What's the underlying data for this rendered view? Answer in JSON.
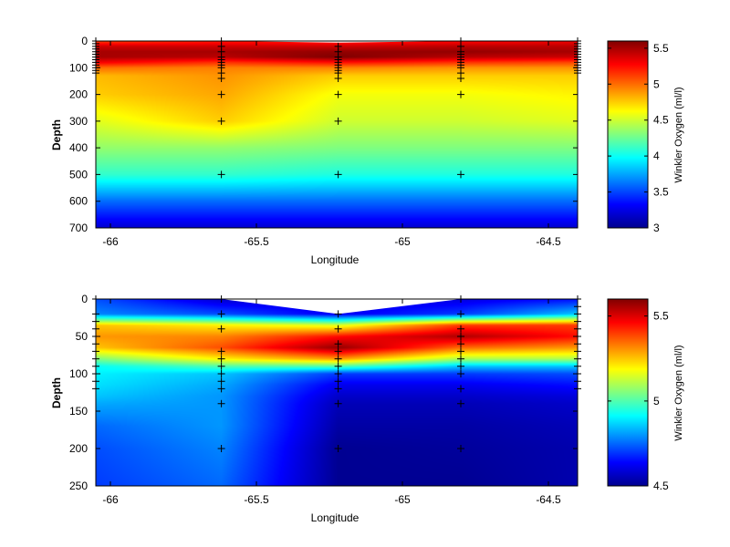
{
  "chart_data": [
    {
      "type": "heatmap",
      "xlabel": "Longitude",
      "ylabel": "Depth",
      "colorbar_label": "Winkler Oxygen (ml/l)",
      "xlim": [
        -66.05,
        -64.4
      ],
      "ylim": [
        0,
        700
      ],
      "y_reversed": true,
      "xticks": [
        "-66",
        "-65.5",
        "-65",
        "-64.5"
      ],
      "yticks": [
        "0",
        "100",
        "200",
        "300",
        "400",
        "500",
        "600",
        "700"
      ],
      "clim": [
        3,
        5.6
      ],
      "cbar_ticks": [
        "3",
        "3.5",
        "4",
        "4.5",
        "5",
        "5.5"
      ],
      "colormap": "jet",
      "surface_depth": [
        {
          "lon": -66.05,
          "depth": 0
        },
        {
          "lon": -65.62,
          "depth": 0
        },
        {
          "lon": -65.22,
          "depth": 6
        },
        {
          "lon": -64.8,
          "depth": 0
        },
        {
          "lon": -64.4,
          "depth": 0
        }
      ],
      "stations": [
        {
          "lon": -66.05,
          "depths": [
            0,
            10,
            20,
            30,
            40,
            50,
            60,
            70,
            80,
            90,
            100,
            110,
            120
          ]
        },
        {
          "lon": -65.62,
          "depths": [
            0,
            20,
            40,
            60,
            70,
            80,
            90,
            100,
            120,
            140,
            200,
            300,
            500
          ]
        },
        {
          "lon": -65.22,
          "depths": [
            20,
            40,
            60,
            70,
            80,
            90,
            100,
            110,
            120,
            140,
            200,
            300,
            500
          ]
        },
        {
          "lon": -64.8,
          "depths": [
            0,
            20,
            40,
            50,
            60,
            70,
            80,
            90,
            100,
            120,
            140,
            200,
            500
          ]
        },
        {
          "lon": -64.4,
          "depths": [
            0,
            10,
            20,
            30,
            40,
            50,
            60,
            70,
            80,
            90,
            100,
            110,
            120
          ]
        }
      ],
      "profiles": [
        {
          "depths": [
            0,
            20,
            40,
            60,
            80,
            100,
            130,
            200,
            300,
            400,
            500,
            600,
            700
          ],
          "values": [
            5.1,
            5.4,
            5.5,
            5.5,
            5.3,
            5.0,
            4.8,
            4.75,
            4.55,
            4.35,
            4.1,
            3.6,
            3.2
          ]
        },
        {
          "depths": [
            0,
            20,
            40,
            60,
            80,
            100,
            130,
            200,
            300,
            400,
            500,
            600,
            700
          ],
          "values": [
            5.2,
            5.4,
            5.5,
            5.45,
            5.15,
            4.95,
            4.9,
            4.85,
            4.75,
            4.35,
            4.1,
            3.6,
            3.2
          ]
        },
        {
          "depths": [
            0,
            20,
            40,
            60,
            80,
            100,
            130,
            200,
            300,
            400,
            500,
            600,
            700
          ],
          "values": [
            5.2,
            5.4,
            5.55,
            5.6,
            5.25,
            4.95,
            4.75,
            4.6,
            4.5,
            4.3,
            4.05,
            3.6,
            3.2
          ]
        },
        {
          "depths": [
            0,
            20,
            40,
            60,
            80,
            100,
            130,
            200,
            300,
            400,
            500,
            600,
            700
          ],
          "values": [
            5.25,
            5.45,
            5.55,
            5.45,
            5.15,
            4.9,
            4.75,
            4.6,
            4.5,
            4.3,
            4.05,
            3.6,
            3.2
          ]
        },
        {
          "depths": [
            0,
            20,
            40,
            60,
            80,
            100,
            130,
            200,
            300,
            400,
            500,
            600,
            700
          ],
          "values": [
            5.3,
            5.45,
            5.5,
            5.4,
            5.1,
            4.9,
            4.75,
            4.65,
            4.55,
            4.3,
            4.05,
            3.6,
            3.2
          ]
        }
      ]
    },
    {
      "type": "heatmap",
      "xlabel": "Longitude",
      "ylabel": "Depth",
      "colorbar_label": "Winkler Oxygen (ml/l)",
      "xlim": [
        -66.05,
        -64.4
      ],
      "ylim": [
        0,
        250
      ],
      "y_reversed": true,
      "xticks": [
        "-66",
        "-65.5",
        "-65",
        "-64.5"
      ],
      "yticks": [
        "0",
        "50",
        "100",
        "150",
        "200",
        "250"
      ],
      "clim": [
        4.5,
        5.6
      ],
      "cbar_ticks": [
        "4.5",
        "5",
        "5.5"
      ],
      "colormap": "jet",
      "surface_depth": [
        {
          "lon": -66.05,
          "depth": 0
        },
        {
          "lon": -65.62,
          "depth": 0
        },
        {
          "lon": -65.22,
          "depth": 20
        },
        {
          "lon": -64.8,
          "depth": 0
        },
        {
          "lon": -64.4,
          "depth": 0
        }
      ],
      "stations": [
        {
          "lon": -66.05,
          "depths": [
            0,
            20,
            30,
            40,
            50,
            60,
            70,
            80,
            90,
            100,
            110,
            120
          ]
        },
        {
          "lon": -65.62,
          "depths": [
            0,
            20,
            40,
            70,
            80,
            90,
            100,
            110,
            120,
            140,
            200
          ]
        },
        {
          "lon": -65.22,
          "depths": [
            20,
            40,
            60,
            70,
            80,
            90,
            100,
            110,
            120,
            140,
            200
          ]
        },
        {
          "lon": -64.8,
          "depths": [
            0,
            20,
            40,
            50,
            60,
            70,
            80,
            90,
            100,
            120,
            140,
            200
          ]
        },
        {
          "lon": -64.4,
          "depths": [
            0,
            10,
            20,
            30,
            40,
            50,
            60,
            70,
            80,
            90,
            100,
            110,
            120
          ]
        }
      ],
      "profiles": [
        {
          "depths": [
            0,
            20,
            35,
            50,
            65,
            80,
            90,
            100,
            115,
            130,
            140,
            170,
            200,
            250
          ],
          "values": [
            4.72,
            4.78,
            5.25,
            5.3,
            5.25,
            5.05,
            4.92,
            4.9,
            4.88,
            4.85,
            4.82,
            4.75,
            4.72,
            4.7
          ]
        },
        {
          "depths": [
            0,
            20,
            35,
            50,
            65,
            80,
            90,
            100,
            115,
            130,
            140,
            170,
            200,
            250
          ],
          "values": [
            4.58,
            4.72,
            5.2,
            5.32,
            5.38,
            5.2,
            5.0,
            4.85,
            4.82,
            4.8,
            4.8,
            4.8,
            4.78,
            4.75
          ]
        },
        {
          "depths": [
            0,
            20,
            35,
            50,
            65,
            80,
            90,
            100,
            115,
            130,
            140,
            170,
            200,
            250
          ],
          "values": [
            4.6,
            4.62,
            5.15,
            5.45,
            5.58,
            5.3,
            5.0,
            4.7,
            4.62,
            4.58,
            4.56,
            4.54,
            4.52,
            4.52
          ]
        },
        {
          "depths": [
            0,
            20,
            35,
            50,
            65,
            80,
            90,
            100,
            115,
            130,
            140,
            170,
            200,
            250
          ],
          "values": [
            4.6,
            4.7,
            5.4,
            5.55,
            5.35,
            5.1,
            4.85,
            4.7,
            4.62,
            4.58,
            4.56,
            4.54,
            4.53,
            4.52
          ]
        },
        {
          "depths": [
            0,
            20,
            35,
            50,
            65,
            80,
            90,
            100,
            115,
            130,
            140,
            170,
            200,
            250
          ],
          "values": [
            4.65,
            4.85,
            5.4,
            5.45,
            5.3,
            5.1,
            4.85,
            4.72,
            4.65,
            4.6,
            4.58,
            4.56,
            4.55,
            4.55
          ]
        }
      ]
    }
  ]
}
